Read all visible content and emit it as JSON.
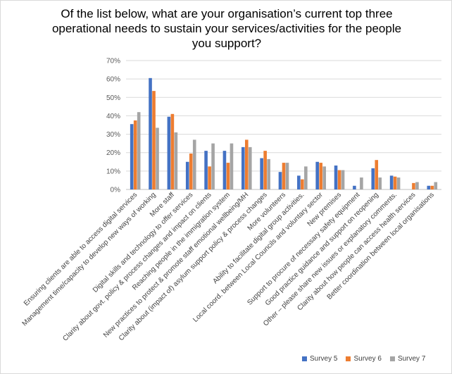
{
  "chart_data": {
    "type": "bar",
    "title": "Of the list below, what are your organisation’s current top three operational needs to sustain your services/activities for the people you support?",
    "title_lines": [
      "Of the list below, what are your organisation’s current top three",
      "operational needs to sustain your services/activities for the people",
      "you support?"
    ],
    "xlabel": "",
    "ylabel": "",
    "ylim": [
      0,
      70
    ],
    "y_ticks": [
      "0%",
      "10%",
      "20%",
      "30%",
      "40%",
      "50%",
      "60%",
      "70%"
    ],
    "y_tick_values": [
      0,
      10,
      20,
      30,
      40,
      50,
      60,
      70
    ],
    "grid": true,
    "legend_position": "bottom-right",
    "categories": [
      "Ensuring clients are able to access digital services",
      "Management time/capacity to develop new ways of working",
      "More staff",
      "Digital skills and technology to offer services",
      "Clarity about govt. policy & process changes and impact on clients",
      "Reaching people in the immigration system",
      "New practices to protect & promote staff emotional wellbeing/MH",
      "Clarity about (impact of) asylum support policy & process changes",
      "More volunteers",
      "Ability to facilitate digital group activities.",
      "Local coord. between Local Councils and voluntary sector",
      "New premises",
      "Support to procure of necessary safety equipment",
      "Good practice guidance and support on reopening",
      "Other – please share new issues or explanatory comments.",
      "Clarity about how people can access health services",
      "Better coordination between local organisations"
    ],
    "series": [
      {
        "name": "Survey 5",
        "color": "#4472C4",
        "values": [
          35.5,
          60.5,
          39.5,
          15,
          21,
          21,
          23,
          17,
          9.5,
          7.5,
          15,
          13,
          2,
          11.5,
          7.5,
          0,
          2
        ]
      },
      {
        "name": "Survey 6",
        "color": "#ED7D31",
        "values": [
          37.5,
          53.5,
          41,
          19.5,
          12.5,
          14.5,
          27,
          21,
          14.5,
          5.5,
          14.5,
          10.5,
          0,
          16,
          7,
          3.5,
          2
        ]
      },
      {
        "name": "Survey 7",
        "color": "#A5A5A5",
        "values": [
          42,
          33.5,
          31,
          27,
          25,
          25,
          23,
          16.5,
          14.5,
          12.5,
          12.5,
          10.5,
          6.5,
          6.5,
          6.5,
          4,
          4
        ]
      }
    ]
  }
}
